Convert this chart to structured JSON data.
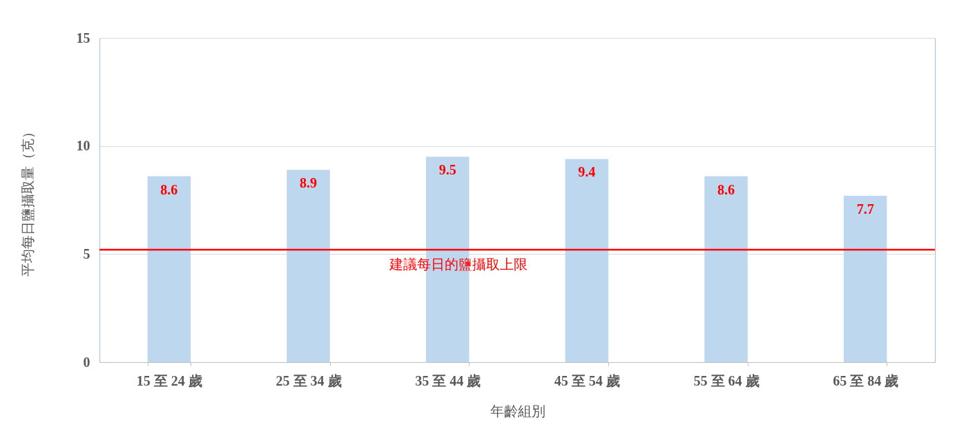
{
  "chart_data": {
    "type": "bar",
    "categories": [
      "15 至 24 歲",
      "25 至 34 歲",
      "35 至 44 歲",
      "45 至 54 歲",
      "55 至 64 歲",
      "65 至 84 歲"
    ],
    "values": [
      8.6,
      8.9,
      9.5,
      9.4,
      8.6,
      7.7
    ],
    "color": "#bdd7ee",
    "xlabel": "年齡組別",
    "ylabel": "平均每日鹽攝取量（克）",
    "ylim": [
      0,
      15
    ],
    "yticks": [
      0,
      5,
      10,
      15
    ],
    "grid": "y",
    "data_labels": true,
    "ref_lines": [
      {
        "axis": "y",
        "value": 5.2,
        "label": "建議每日的鹽攝取上限",
        "color": "#ff0000"
      }
    ]
  }
}
